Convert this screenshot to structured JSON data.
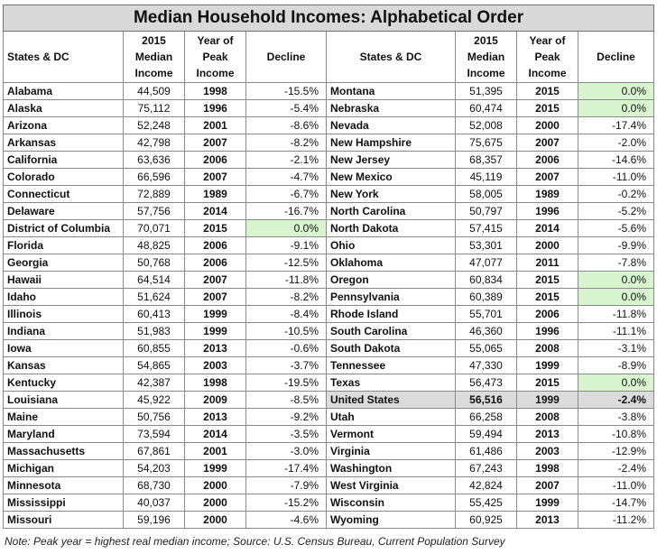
{
  "title": "Median Household Incomes: Alphabetical Order",
  "headers": {
    "state": "States & DC",
    "income": [
      "2015",
      "Median",
      "Income"
    ],
    "peak": [
      "Year of",
      "Peak",
      "Income"
    ],
    "decline": "Decline"
  },
  "left": [
    {
      "state": "Alabama",
      "income": "44,509",
      "year": "1998",
      "decline": "-15.5%"
    },
    {
      "state": "Alaska",
      "income": "75,112",
      "year": "1996",
      "decline": "-5.4%"
    },
    {
      "state": "Arizona",
      "income": "52,248",
      "year": "2001",
      "decline": "-8.6%"
    },
    {
      "state": "Arkansas",
      "income": "42,798",
      "year": "2007",
      "decline": "-8.2%"
    },
    {
      "state": "California",
      "income": "63,636",
      "year": "2006",
      "decline": "-2.1%"
    },
    {
      "state": "Colorado",
      "income": "66,596",
      "year": "2007",
      "decline": "-4.7%"
    },
    {
      "state": "Connecticut",
      "income": "72,889",
      "year": "1989",
      "decline": "-6.7%"
    },
    {
      "state": "Delaware",
      "income": "57,756",
      "year": "2014",
      "decline": "-16.7%"
    },
    {
      "state": "District of Columbia",
      "income": "70,071",
      "year": "2015",
      "decline": "0.0%"
    },
    {
      "state": "Florida",
      "income": "48,825",
      "year": "2006",
      "decline": "-9.1%"
    },
    {
      "state": "Georgia",
      "income": "50,768",
      "year": "2006",
      "decline": "-12.5%"
    },
    {
      "state": "Hawaii",
      "income": "64,514",
      "year": "2007",
      "decline": "-11.8%"
    },
    {
      "state": "Idaho",
      "income": "51,624",
      "year": "2007",
      "decline": "-8.2%"
    },
    {
      "state": "Illinois",
      "income": "60,413",
      "year": "1999",
      "decline": "-8.4%"
    },
    {
      "state": "Indiana",
      "income": "51,983",
      "year": "1999",
      "decline": "-10.5%"
    },
    {
      "state": "Iowa",
      "income": "60,855",
      "year": "2013",
      "decline": "-0.6%"
    },
    {
      "state": "Kansas",
      "income": "54,865",
      "year": "2003",
      "decline": "-3.7%"
    },
    {
      "state": "Kentucky",
      "income": "42,387",
      "year": "1998",
      "decline": "-19.5%"
    },
    {
      "state": "Louisiana",
      "income": "45,922",
      "year": "2009",
      "decline": "-8.5%"
    },
    {
      "state": "Maine",
      "income": "50,756",
      "year": "2013",
      "decline": "-9.2%"
    },
    {
      "state": "Maryland",
      "income": "73,594",
      "year": "2014",
      "decline": "-3.5%"
    },
    {
      "state": "Massachusetts",
      "income": "67,861",
      "year": "2001",
      "decline": "-3.0%"
    },
    {
      "state": "Michigan",
      "income": "54,203",
      "year": "1999",
      "decline": "-17.4%"
    },
    {
      "state": "Minnesota",
      "income": "68,730",
      "year": "2000",
      "decline": "-7.9%"
    },
    {
      "state": "Mississippi",
      "income": "40,037",
      "year": "2000",
      "decline": "-15.2%"
    },
    {
      "state": "Missouri",
      "income": "59,196",
      "year": "2000",
      "decline": "-4.6%"
    }
  ],
  "right": [
    {
      "state": "Montana",
      "income": "51,395",
      "year": "2015",
      "decline": "0.0%"
    },
    {
      "state": "Nebraska",
      "income": "60,474",
      "year": "2015",
      "decline": "0.0%"
    },
    {
      "state": "Nevada",
      "income": "52,008",
      "year": "2000",
      "decline": "-17.4%"
    },
    {
      "state": "New Hampshire",
      "income": "75,675",
      "year": "2007",
      "decline": "-2.0%"
    },
    {
      "state": "New Jersey",
      "income": "68,357",
      "year": "2006",
      "decline": "-14.6%"
    },
    {
      "state": "New Mexico",
      "income": "45,119",
      "year": "2007",
      "decline": "-11.0%"
    },
    {
      "state": "New York",
      "income": "58,005",
      "year": "1989",
      "decline": "-0.2%"
    },
    {
      "state": "North Carolina",
      "income": "50,797",
      "year": "1996",
      "decline": "-5.2%"
    },
    {
      "state": "North Dakota",
      "income": "57,415",
      "year": "2014",
      "decline": "-5.6%"
    },
    {
      "state": "Ohio",
      "income": "53,301",
      "year": "2000",
      "decline": "-9.9%"
    },
    {
      "state": "Oklahoma",
      "income": "47,077",
      "year": "2011",
      "decline": "-7.8%"
    },
    {
      "state": "Oregon",
      "income": "60,834",
      "year": "2015",
      "decline": "0.0%"
    },
    {
      "state": "Pennsylvania",
      "income": "60,389",
      "year": "2015",
      "decline": "0.0%"
    },
    {
      "state": "Rhode Island",
      "income": "55,701",
      "year": "2006",
      "decline": "-11.8%"
    },
    {
      "state": "South Carolina",
      "income": "46,360",
      "year": "1996",
      "decline": "-11.1%"
    },
    {
      "state": "South Dakota",
      "income": "55,065",
      "year": "2008",
      "decline": "-3.1%"
    },
    {
      "state": "Tennessee",
      "income": "47,330",
      "year": "1999",
      "decline": "-8.9%"
    },
    {
      "state": "Texas",
      "income": "56,473",
      "year": "2015",
      "decline": "0.0%"
    },
    {
      "state": "United States",
      "income": "56,516",
      "year": "1999",
      "decline": "-2.4%"
    },
    {
      "state": "Utah",
      "income": "66,258",
      "year": "2008",
      "decline": "-3.8%"
    },
    {
      "state": "Vermont",
      "income": "59,494",
      "year": "2013",
      "decline": "-10.8%"
    },
    {
      "state": "Virginia",
      "income": "61,486",
      "year": "2003",
      "decline": "-12.9%"
    },
    {
      "state": "Washington",
      "income": "67,243",
      "year": "1998",
      "decline": "-2.4%"
    },
    {
      "state": "West Virginia",
      "income": "42,824",
      "year": "2007",
      "decline": "-11.0%"
    },
    {
      "state": "Wisconsin",
      "income": "55,425",
      "year": "1999",
      "decline": "-14.7%"
    },
    {
      "state": "Wyoming",
      "income": "60,925",
      "year": "2013",
      "decline": "-11.2%"
    }
  ],
  "colors": {
    "zero_highlight": "#d8f5cf",
    "us_highlight": "#dcdcdc",
    "title_bg": "#d9d9d9"
  },
  "note": "Note: Peak year = highest real median income; Source:  U.S. Census Bureau, Current Population Survey"
}
